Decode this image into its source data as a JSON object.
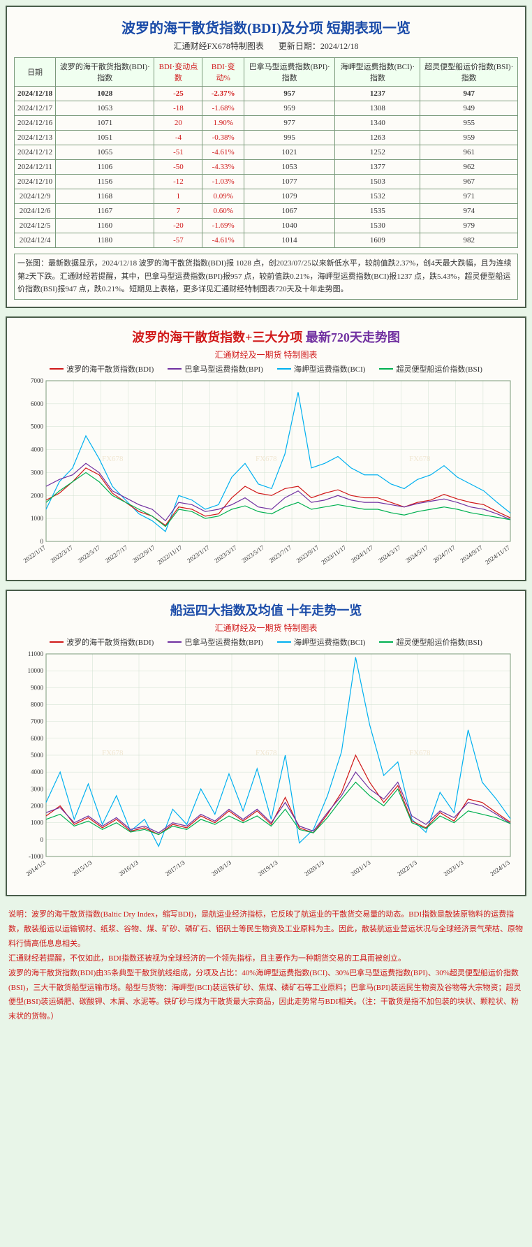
{
  "table_panel": {
    "title": "波罗的海干散货指数(BDI)及分项 短期表现一览",
    "source": "汇通财经FX678特制图表",
    "update_label": "更新日期：",
    "update_date": "2024/12/18",
    "columns": [
      "日期",
      "波罗的海干散货指数(BDI)·指数",
      "BDI·变动点数",
      "BDI·变动%",
      "巴拿马型运费指数(BPI)·指数",
      "海岬型运费指数(BCI)·指数",
      "超灵便型船运价指数(BSI)·指数"
    ],
    "red_cols": [
      2,
      3
    ],
    "rows": [
      {
        "d": "2024/12/18",
        "v": [
          "1028",
          "-25",
          "-2.37%",
          "957",
          "1237",
          "947"
        ],
        "bold": true
      },
      {
        "d": "2024/12/17",
        "v": [
          "1053",
          "-18",
          "-1.68%",
          "959",
          "1308",
          "949"
        ]
      },
      {
        "d": "2024/12/16",
        "v": [
          "1071",
          "20",
          "1.90%",
          "977",
          "1340",
          "955"
        ]
      },
      {
        "d": "2024/12/13",
        "v": [
          "1051",
          "-4",
          "-0.38%",
          "995",
          "1263",
          "959"
        ]
      },
      {
        "d": "2024/12/12",
        "v": [
          "1055",
          "-51",
          "-4.61%",
          "1021",
          "1252",
          "961"
        ]
      },
      {
        "d": "2024/12/11",
        "v": [
          "1106",
          "-50",
          "-4.33%",
          "1053",
          "1377",
          "962"
        ]
      },
      {
        "d": "2024/12/10",
        "v": [
          "1156",
          "-12",
          "-1.03%",
          "1077",
          "1503",
          "967"
        ]
      },
      {
        "d": "2024/12/9",
        "v": [
          "1168",
          "1",
          "0.09%",
          "1079",
          "1532",
          "971"
        ]
      },
      {
        "d": "2024/12/6",
        "v": [
          "1167",
          "7",
          "0.60%",
          "1067",
          "1535",
          "974"
        ]
      },
      {
        "d": "2024/12/5",
        "v": [
          "1160",
          "-20",
          "-1.69%",
          "1040",
          "1530",
          "979"
        ]
      },
      {
        "d": "2024/12/4",
        "v": [
          "1180",
          "-57",
          "-4.61%",
          "1014",
          "1609",
          "982"
        ]
      }
    ],
    "note": "一张图：最新数据显示，2024/12/18 波罗的海干散货指数(BDI)报 1028 点，创2023/07/25以来新低水平，较前值跌2.37%，创4天最大跌幅，且为连续第2天下跌。汇通财经若提醒，其中，巴拿马型运费指数(BPI)报957 点，较前值跌0.21%，海岬型运费指数(BCI)报1237 点，跌5.43%，超灵便型船运价指数(BSI)报947 点，跌0.21%。短期见上表格，更多详见汇通财经特制图表720天及十年走势图。"
  },
  "chart720": {
    "title_p1": "波罗的海干散货指数+三大分项",
    "title_p2": "最新720天走势图",
    "subtitle": "汇通财经及一期货 特制图表",
    "legend": [
      {
        "name": "波罗的海干散货指数(BDI)",
        "color": "#d01818"
      },
      {
        "name": "巴拿马型运费指数(BPI)",
        "color": "#7030a0"
      },
      {
        "name": "海岬型运费指数(BCI)",
        "color": "#00b0f0"
      },
      {
        "name": "超灵便型船运价指数(BSI)",
        "color": "#00b050"
      }
    ],
    "ylim": [
      0,
      7000
    ],
    "ytick_step": 1000,
    "x_labels": [
      "2022/1/17",
      "2022/3/17",
      "2022/5/17",
      "2022/7/17",
      "2022/9/17",
      "2022/11/17",
      "2023/1/17",
      "2023/3/17",
      "2023/5/17",
      "2023/7/17",
      "2023/9/17",
      "2023/11/17",
      "2024/1/17",
      "2024/3/17",
      "2024/5/17",
      "2024/7/17",
      "2024/9/17",
      "2024/11/17"
    ],
    "background": "#fdfcf8",
    "grid_color": "#d0e0d0",
    "series": {
      "bdi": [
        1800,
        2100,
        2600,
        3200,
        2900,
        2100,
        1700,
        1300,
        1100,
        700,
        1500,
        1400,
        1100,
        1200,
        1900,
        2400,
        2100,
        2000,
        2300,
        2400,
        1900,
        2100,
        2250,
        2000,
        1900,
        1900,
        1700,
        1500,
        1700,
        1800,
        2050,
        1850,
        1700,
        1600,
        1300,
        1028
      ],
      "bpi": [
        2400,
        2700,
        2900,
        3400,
        3000,
        2200,
        1900,
        1600,
        1400,
        900,
        1700,
        1600,
        1300,
        1400,
        1600,
        1900,
        1500,
        1400,
        1900,
        2200,
        1700,
        1800,
        2000,
        1800,
        1700,
        1700,
        1600,
        1500,
        1650,
        1750,
        1850,
        1700,
        1500,
        1400,
        1200,
        957
      ],
      "bci": [
        1400,
        2600,
        3200,
        4600,
        3600,
        2400,
        1800,
        1200,
        900,
        430,
        2000,
        1800,
        1400,
        1600,
        2800,
        3400,
        2500,
        2300,
        3800,
        6500,
        3200,
        3400,
        3700,
        3200,
        2900,
        2900,
        2500,
        2300,
        2700,
        2900,
        3300,
        2800,
        2500,
        2200,
        1700,
        1237
      ],
      "bsi": [
        1700,
        2200,
        2600,
        3000,
        2600,
        2000,
        1700,
        1400,
        1100,
        650,
        1400,
        1300,
        1000,
        1100,
        1400,
        1550,
        1300,
        1200,
        1500,
        1700,
        1400,
        1500,
        1600,
        1500,
        1400,
        1400,
        1250,
        1150,
        1300,
        1400,
        1500,
        1400,
        1250,
        1150,
        1050,
        947
      ]
    }
  },
  "chart10y": {
    "title": "船运四大指数及均值 十年走势一览",
    "subtitle": "汇通财经及一期货 特制图表",
    "legend": [
      {
        "name": "波罗的海干散货指数(BDI)",
        "color": "#d01818"
      },
      {
        "name": "巴拿马型运费指数(BPI)",
        "color": "#7030a0"
      },
      {
        "name": "海岬型运费指数(BCI)",
        "color": "#00b0f0"
      },
      {
        "name": "超灵便型船运价指数(BSI)",
        "color": "#00b050"
      }
    ],
    "ylim": [
      -1000,
      11000
    ],
    "yticks": [
      -1000,
      0,
      1000,
      2000,
      3000,
      4000,
      5000,
      6000,
      7000,
      8000,
      9000,
      10000,
      11000
    ],
    "x_labels": [
      "2014/1/3",
      "2015/1/3",
      "2016/1/3",
      "2017/1/3",
      "2018/1/3",
      "2019/1/3",
      "2020/1/3",
      "2021/1/3",
      "2022/1/3",
      "2023/1/3",
      "2024/1/3"
    ],
    "background": "#fdfcf8",
    "grid_color": "#d0e0d0",
    "series": {
      "bdi": [
        1400,
        2000,
        900,
        1300,
        700,
        1200,
        500,
        700,
        300,
        900,
        700,
        1400,
        1000,
        1700,
        1100,
        1700,
        900,
        2500,
        700,
        400,
        1500,
        2800,
        5000,
        3400,
        2200,
        3200,
        1100,
        700,
        1600,
        1100,
        2400,
        2200,
        1600,
        1028
      ],
      "bpi": [
        1600,
        1900,
        1000,
        1400,
        800,
        1300,
        600,
        800,
        400,
        1000,
        800,
        1500,
        1100,
        1800,
        1200,
        1800,
        1000,
        2200,
        800,
        500,
        1600,
        2600,
        4000,
        3000,
        2400,
        3400,
        1400,
        900,
        1700,
        1300,
        2200,
        2000,
        1500,
        957
      ],
      "bci": [
        2200,
        4000,
        1200,
        3300,
        900,
        2600,
        500,
        1200,
        -400,
        1800,
        900,
        3000,
        1500,
        3900,
        1700,
        4200,
        1200,
        5000,
        -200,
        600,
        2600,
        5200,
        10800,
        6800,
        3800,
        4600,
        1200,
        430,
        2800,
        1600,
        6500,
        3400,
        2400,
        1237
      ],
      "bsi": [
        1200,
        1500,
        800,
        1100,
        600,
        1000,
        450,
        600,
        300,
        800,
        600,
        1200,
        900,
        1400,
        1000,
        1400,
        800,
        1800,
        600,
        400,
        1300,
        2400,
        3400,
        2600,
        2000,
        3000,
        1000,
        650,
        1400,
        1000,
        1700,
        1500,
        1300,
        947
      ]
    }
  },
  "description": "说明：波罗的海干散货指数(Baltic Dry Index，缩写BDI)，是航运业经济指标，它反映了航运业的干散货交易量的动态。BDI指数是散装原物料的运费指数，散装船运以运输钢材、纸浆、谷物、煤、矿砂、磷矿石、铝矾土等民生物资及工业原料为主。因此，散装航运业营运状况与全球经济景气荣枯、原物料行情高低息息相关。\n汇通财经若提醒，不仅如此，BDI指数还被视为全球经济的一个领先指标，且主要作为一种期货交易的工具而被创立。\n波罗的海干散货指数(BDI)由35条典型干散货航线组成，分项及占比：40%海岬型运费指数(BCI)、30%巴拿马型运费指数(BPI)、30%超灵便型船运价指数(BSI)，三大干散货船型运输市场。船型与货物：海岬型(BCI)装运铁矿砂、焦煤、磷矿石等工业原料；巴拿马(BPI)装运民生物资及谷物等大宗物资；超灵便型(BSI)装运磷肥、碳酸钾、木屑、水泥等。铁矿砂与煤为干散货最大宗商品，因此走势常与BDI相关。（注：干散货是指不加包装的块状、颗粒状、粉末状的货物。）"
}
